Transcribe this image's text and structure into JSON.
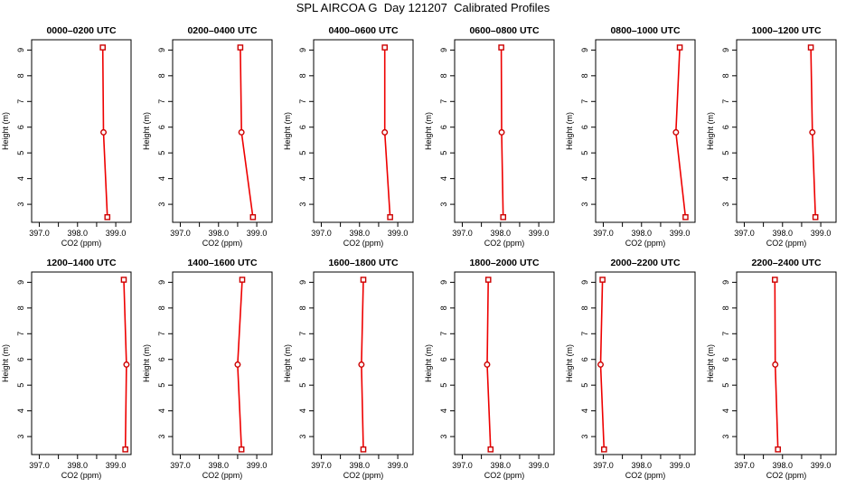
{
  "title": "SPL AIRCOA G  Day 121207  Calibrated Profiles",
  "colors": {
    "line": "#ee0000",
    "marker": "#cc0000",
    "axis": "#000000"
  },
  "chart_data": [
    {
      "type": "line",
      "title": "0000–0200 UTC",
      "xlabel": "CO2 (ppm)",
      "ylabel": "Height (m)",
      "xlim": [
        396.8,
        399.4
      ],
      "ylim": [
        2.3,
        9.4
      ],
      "xticks": [
        "397.0",
        "398.0",
        "399.0"
      ],
      "yticks": [
        "3",
        "4",
        "5",
        "6",
        "7",
        "8",
        "9"
      ],
      "grid": false,
      "x": [
        398.66,
        398.68,
        398.78
      ],
      "y": [
        9.1,
        5.8,
        2.5
      ]
    },
    {
      "type": "line",
      "title": "0200–0400 UTC",
      "xlabel": "CO2 (ppm)",
      "ylabel": "Height (m)",
      "xlim": [
        396.8,
        399.4
      ],
      "ylim": [
        2.3,
        9.4
      ],
      "xticks": [
        "397.0",
        "398.0",
        "399.0"
      ],
      "yticks": [
        "3",
        "4",
        "5",
        "6",
        "7",
        "8",
        "9"
      ],
      "grid": false,
      "x": [
        398.57,
        398.6,
        398.9
      ],
      "y": [
        9.1,
        5.8,
        2.5
      ]
    },
    {
      "type": "line",
      "title": "0400–0600 UTC",
      "xlabel": "CO2 (ppm)",
      "ylabel": "Height (m)",
      "xlim": [
        396.8,
        399.4
      ],
      "ylim": [
        2.3,
        9.4
      ],
      "xticks": [
        "397.0",
        "398.0",
        "399.0"
      ],
      "yticks": [
        "3",
        "4",
        "5",
        "6",
        "7",
        "8",
        "9"
      ],
      "grid": false,
      "x": [
        398.66,
        398.66,
        398.8
      ],
      "y": [
        9.1,
        5.8,
        2.5
      ]
    },
    {
      "type": "line",
      "title": "0600–0800 UTC",
      "xlabel": "CO2 (ppm)",
      "ylabel": "Height (m)",
      "xlim": [
        396.8,
        399.4
      ],
      "ylim": [
        2.3,
        9.4
      ],
      "xticks": [
        "397.0",
        "398.0",
        "399.0"
      ],
      "yticks": [
        "3",
        "4",
        "5",
        "6",
        "7",
        "8",
        "9"
      ],
      "grid": false,
      "x": [
        398.02,
        398.03,
        398.07
      ],
      "y": [
        9.1,
        5.8,
        2.5
      ]
    },
    {
      "type": "line",
      "title": "0800–1000 UTC",
      "xlabel": "CO2 (ppm)",
      "ylabel": "Height (m)",
      "xlim": [
        396.8,
        399.4
      ],
      "ylim": [
        2.3,
        9.4
      ],
      "xticks": [
        "397.0",
        "398.0",
        "399.0"
      ],
      "yticks": [
        "3",
        "4",
        "5",
        "6",
        "7",
        "8",
        "9"
      ],
      "grid": false,
      "x": [
        399.0,
        398.9,
        399.15
      ],
      "y": [
        9.1,
        5.8,
        2.5
      ]
    },
    {
      "type": "line",
      "title": "1000–1200 UTC",
      "xlabel": "CO2 (ppm)",
      "ylabel": "Height (m)",
      "xlim": [
        396.8,
        399.4
      ],
      "ylim": [
        2.3,
        9.4
      ],
      "xticks": [
        "397.0",
        "398.0",
        "399.0"
      ],
      "yticks": [
        "3",
        "4",
        "5",
        "6",
        "7",
        "8",
        "9"
      ],
      "grid": false,
      "x": [
        398.74,
        398.78,
        398.86
      ],
      "y": [
        9.1,
        5.8,
        2.5
      ]
    },
    {
      "type": "line",
      "title": "1200–1400 UTC",
      "xlabel": "CO2 (ppm)",
      "ylabel": "Height (m)",
      "xlim": [
        396.8,
        399.4
      ],
      "ylim": [
        2.3,
        9.4
      ],
      "xticks": [
        "397.0",
        "398.0",
        "399.0"
      ],
      "yticks": [
        "3",
        "4",
        "5",
        "6",
        "7",
        "8",
        "9"
      ],
      "grid": false,
      "x": [
        399.21,
        399.28,
        399.25
      ],
      "y": [
        9.1,
        5.8,
        2.5
      ]
    },
    {
      "type": "line",
      "title": "1400–1600 UTC",
      "xlabel": "CO2 (ppm)",
      "ylabel": "Height (m)",
      "xlim": [
        396.8,
        399.4
      ],
      "ylim": [
        2.3,
        9.4
      ],
      "xticks": [
        "397.0",
        "398.0",
        "399.0"
      ],
      "yticks": [
        "3",
        "4",
        "5",
        "6",
        "7",
        "8",
        "9"
      ],
      "grid": false,
      "x": [
        398.62,
        398.5,
        398.6
      ],
      "y": [
        9.1,
        5.8,
        2.5
      ]
    },
    {
      "type": "line",
      "title": "1600–1800 UTC",
      "xlabel": "CO2 (ppm)",
      "ylabel": "Height (m)",
      "xlim": [
        396.8,
        399.4
      ],
      "ylim": [
        2.3,
        9.4
      ],
      "xticks": [
        "397.0",
        "398.0",
        "399.0"
      ],
      "yticks": [
        "3",
        "4",
        "5",
        "6",
        "7",
        "8",
        "9"
      ],
      "grid": false,
      "x": [
        398.1,
        398.05,
        398.1
      ],
      "y": [
        9.1,
        5.8,
        2.5
      ]
    },
    {
      "type": "line",
      "title": "1800–2000 UTC",
      "xlabel": "CO2 (ppm)",
      "ylabel": "Height (m)",
      "xlim": [
        396.8,
        399.4
      ],
      "ylim": [
        2.3,
        9.4
      ],
      "xticks": [
        "397.0",
        "398.0",
        "399.0"
      ],
      "yticks": [
        "3",
        "4",
        "5",
        "6",
        "7",
        "8",
        "9"
      ],
      "grid": false,
      "x": [
        397.68,
        397.65,
        397.74
      ],
      "y": [
        9.1,
        5.8,
        2.5
      ]
    },
    {
      "type": "line",
      "title": "2000–2200 UTC",
      "xlabel": "CO2 (ppm)",
      "ylabel": "Height (m)",
      "xlim": [
        396.8,
        399.4
      ],
      "ylim": [
        2.3,
        9.4
      ],
      "xticks": [
        "397.0",
        "398.0",
        "399.0"
      ],
      "yticks": [
        "3",
        "4",
        "5",
        "6",
        "7",
        "8",
        "9"
      ],
      "grid": false,
      "x": [
        396.98,
        396.93,
        397.02
      ],
      "y": [
        9.1,
        5.8,
        2.5
      ]
    },
    {
      "type": "line",
      "title": "2200–2400 UTC",
      "xlabel": "CO2 (ppm)",
      "ylabel": "Height (m)",
      "xlim": [
        396.8,
        399.4
      ],
      "ylim": [
        2.3,
        9.4
      ],
      "xticks": [
        "397.0",
        "398.0",
        "399.0"
      ],
      "yticks": [
        "3",
        "4",
        "5",
        "6",
        "7",
        "8",
        "9"
      ],
      "grid": false,
      "x": [
        397.8,
        397.81,
        397.88
      ],
      "y": [
        9.1,
        5.8,
        2.5
      ]
    }
  ]
}
